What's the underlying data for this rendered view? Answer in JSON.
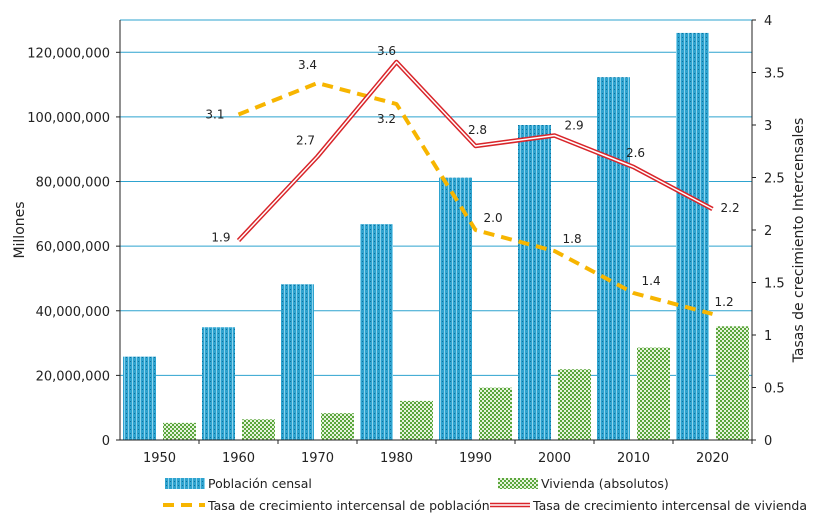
{
  "chart_data": {
    "type": "bar",
    "categories": [
      "1950",
      "1960",
      "1970",
      "1980",
      "1990",
      "2000",
      "2010",
      "2020"
    ],
    "ylabel_left": "Millones",
    "ylabel_right": "Tasas de crecimiento Intercensales",
    "y_left_lim": [
      0,
      130000000
    ],
    "y_left_ticks": [
      {
        "value": 0,
        "label": "0"
      },
      {
        "value": 20000000,
        "label": "20,000,000"
      },
      {
        "value": 40000000,
        "label": "40,000,000"
      },
      {
        "value": 60000000,
        "label": "60,000,000"
      },
      {
        "value": 80000000,
        "label": "80,000,000"
      },
      {
        "value": 100000000,
        "label": "100,000,000"
      },
      {
        "value": 120000000,
        "label": "120,000,000"
      }
    ],
    "y_right_lim": [
      0,
      4
    ],
    "y_right_ticks": [
      {
        "value": 0,
        "label": "0"
      },
      {
        "value": 0.5,
        "label": "0.5"
      },
      {
        "value": 1,
        "label": "1"
      },
      {
        "value": 1.5,
        "label": "1.5"
      },
      {
        "value": 2,
        "label": "2"
      },
      {
        "value": 2.5,
        "label": "2.5"
      },
      {
        "value": 3,
        "label": "3"
      },
      {
        "value": 3.5,
        "label": "3.5"
      },
      {
        "value": 4,
        "label": "4"
      }
    ],
    "grid": true,
    "legend_position": "bottom",
    "bar_series": [
      {
        "name": "Población censal",
        "color": "#2ea3cf",
        "values": [
          25800000,
          34900000,
          48200000,
          66800000,
          81200000,
          97500000,
          112300000,
          126000000
        ]
      },
      {
        "name": "Vivienda (absolutos)",
        "color": "#5aa63c",
        "values": [
          5300000,
          6400000,
          8300000,
          12100000,
          16200000,
          21900000,
          28600000,
          35200000
        ]
      }
    ],
    "line_series": [
      {
        "name": "Tasa  de crecimiento intercensal de población",
        "color": "#f7b500",
        "style": "dashed",
        "points": [
          {
            "x": "1960",
            "y": 3.1,
            "label": "3.1"
          },
          {
            "x": "1970",
            "y": 3.4,
            "label": "3.4"
          },
          {
            "x": "1980",
            "y": 3.2,
            "label": "3.2"
          },
          {
            "x": "1990",
            "y": 2.0,
            "label": "2.0"
          },
          {
            "x": "2000",
            "y": 1.8,
            "label": "1.8"
          },
          {
            "x": "2010",
            "y": 1.4,
            "label": "1.4"
          },
          {
            "x": "2020",
            "y": 1.2,
            "label": "1.2"
          }
        ]
      },
      {
        "name": "Tasa de crecimiento intercensal de vivienda",
        "color": "#d9252a",
        "style": "double",
        "points": [
          {
            "x": "1960",
            "y": 1.9,
            "label": "1.9"
          },
          {
            "x": "1970",
            "y": 2.7,
            "label": "2.7"
          },
          {
            "x": "1980",
            "y": 3.6,
            "label": "3.6"
          },
          {
            "x": "1990",
            "y": 2.8,
            "label": "2.8"
          },
          {
            "x": "2000",
            "y": 2.9,
            "label": "2.9"
          },
          {
            "x": "2010",
            "y": 2.6,
            "label": "2.6"
          },
          {
            "x": "2020",
            "y": 2.2,
            "label": "2.2"
          }
        ]
      }
    ]
  }
}
